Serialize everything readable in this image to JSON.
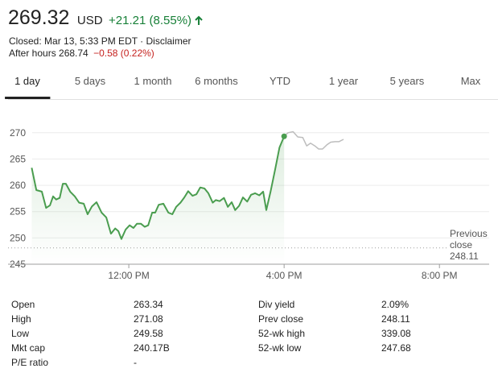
{
  "header": {
    "price": "269.32",
    "currency": "USD",
    "change": "+21.21 (8.55%)",
    "status": "Closed: Mar 13, 5:33 PM EDT · Disclaimer",
    "after_hours": "After hours 268.74",
    "after_hours_change": "−0.58 (0.22%)"
  },
  "tabs": [
    "1 day",
    "5 days",
    "1 month",
    "6 months",
    "YTD",
    "1 year",
    "5 years",
    "Max"
  ],
  "selected_tab": 0,
  "chart_data": {
    "type": "line",
    "xlim": [
      8.89,
      21.28
    ],
    "xticks": [
      {
        "value": 12,
        "label": "12:00 PM"
      },
      {
        "value": 16,
        "label": "4:00 PM"
      },
      {
        "value": 20,
        "label": "8:00 PM"
      }
    ],
    "ylim": [
      245,
      271.5
    ],
    "yticks": [
      245,
      250,
      255,
      260,
      265,
      270
    ],
    "grid": true,
    "series": [
      {
        "color": "#4a9d4f",
        "x": [
          9.5,
          9.62,
          9.76,
          9.87,
          9.97,
          10.05,
          10.13,
          10.22,
          10.3,
          10.38,
          10.49,
          10.61,
          10.72,
          10.84,
          10.94,
          11.05,
          11.17,
          11.3,
          11.42,
          11.54,
          11.65,
          11.73,
          11.81,
          11.92,
          12.02,
          12.12,
          12.21,
          12.31,
          12.41,
          12.5,
          12.6,
          12.68,
          12.77,
          12.89,
          13.02,
          13.12,
          13.22,
          13.33,
          13.43,
          13.53,
          13.64,
          13.74,
          13.84,
          13.95,
          14.05,
          14.16,
          14.24,
          14.34,
          14.45,
          14.55,
          14.65,
          14.74,
          14.84,
          14.94,
          15.05,
          15.15,
          15.25,
          15.36,
          15.46,
          15.54,
          15.65,
          15.77,
          15.88,
          16.0
        ],
        "values": [
          263.34,
          259.1,
          258.8,
          255.7,
          256.2,
          257.9,
          257.3,
          257.6,
          260.3,
          260.3,
          258.8,
          257.9,
          256.7,
          256.5,
          254.5,
          256.0,
          256.8,
          254.8,
          253.9,
          250.8,
          251.8,
          251.3,
          249.8,
          251.6,
          252.4,
          251.9,
          252.7,
          252.7,
          252.1,
          252.4,
          254.8,
          254.8,
          256.3,
          256.5,
          254.8,
          254.5,
          255.9,
          256.7,
          257.7,
          258.9,
          258.0,
          258.3,
          259.6,
          259.4,
          258.5,
          256.7,
          257.2,
          257.0,
          257.6,
          255.9,
          256.8,
          255.3,
          256.1,
          257.7,
          256.9,
          258.2,
          258.5,
          258.1,
          258.8,
          255.3,
          258.8,
          263.1,
          267.2,
          269.32
        ]
      },
      {
        "color": "#bdbdbd",
        "x": [
          16.0,
          16.1,
          16.23,
          16.35,
          16.48,
          16.58,
          16.68,
          16.79,
          16.89,
          16.99,
          17.1,
          17.2,
          17.31,
          17.41,
          17.53
        ],
        "values": [
          269.32,
          270.0,
          270.2,
          269.2,
          269.1,
          267.5,
          268.0,
          267.5,
          266.9,
          266.9,
          267.7,
          268.2,
          268.3,
          268.3,
          268.74
        ]
      }
    ],
    "reference_line": {
      "label": "Previous close",
      "value": 248.11
    }
  },
  "stats": [
    [
      "Open",
      "263.34",
      "Div yield",
      "2.09%"
    ],
    [
      "High",
      "271.08",
      "Prev close",
      "248.11"
    ],
    [
      "Low",
      "249.58",
      "52-wk high",
      "339.08"
    ],
    [
      "Mkt cap",
      "240.17B",
      "52-wk low",
      "247.68"
    ],
    [
      "P/E ratio",
      "-"
    ]
  ]
}
